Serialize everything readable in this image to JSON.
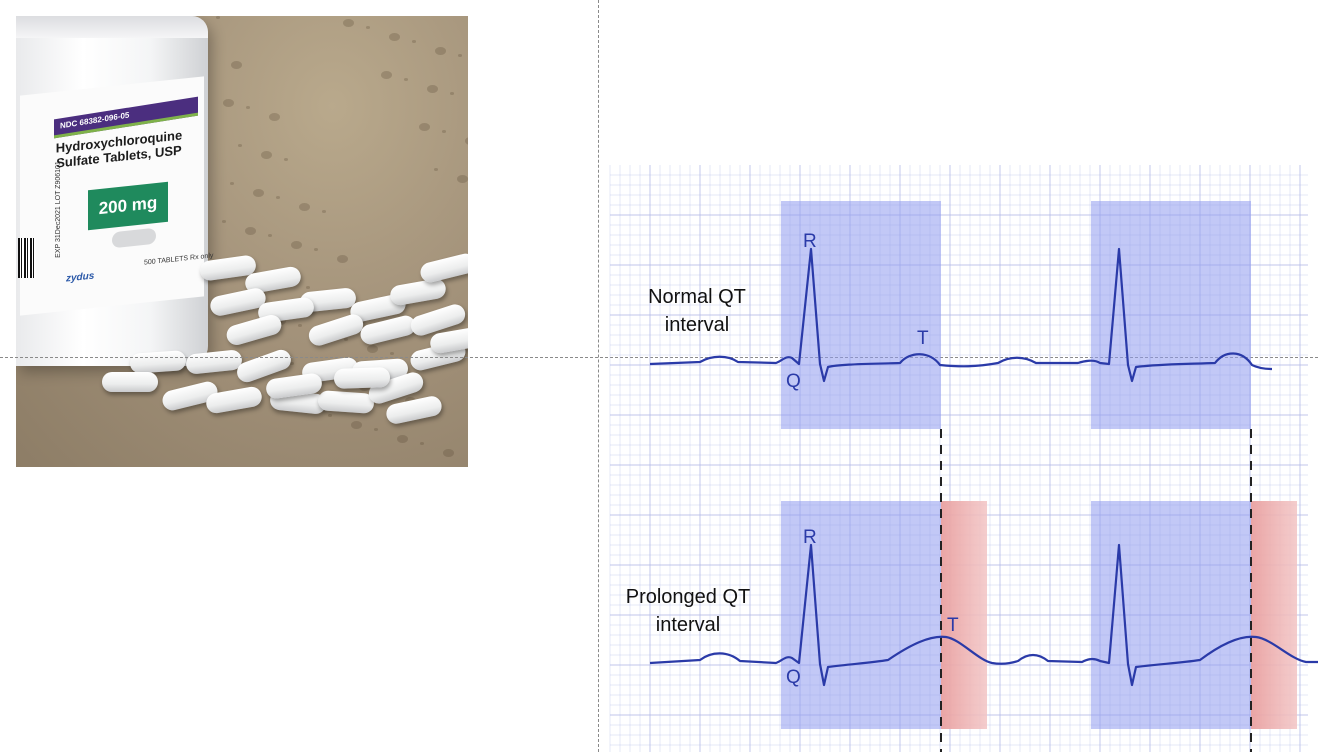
{
  "photo": {
    "ndc": "NDC 68382-096-05",
    "drug_name": "Hydroxychloroquine Sulfate Tablets, USP",
    "dose": "200 mg",
    "lot": "EXP 31Dec2021  LOT Z906101",
    "count": "500 TABLETS  Rx only",
    "brand": "zydus",
    "colors": {
      "band": "#4b2e7f",
      "dose_box": "#1f8a5d",
      "countertop": "#a3927a"
    }
  },
  "ecg": {
    "normal_label": "Normal QT interval",
    "prolonged_label": "Prolonged QT interval",
    "wave_labels": {
      "r": "R",
      "q": "Q",
      "t": "T"
    },
    "colors": {
      "qt_box": "#8f9bef",
      "extension": "#f1a9a9",
      "trace": "#2a3aa8",
      "grid": "#b8bde8"
    }
  }
}
